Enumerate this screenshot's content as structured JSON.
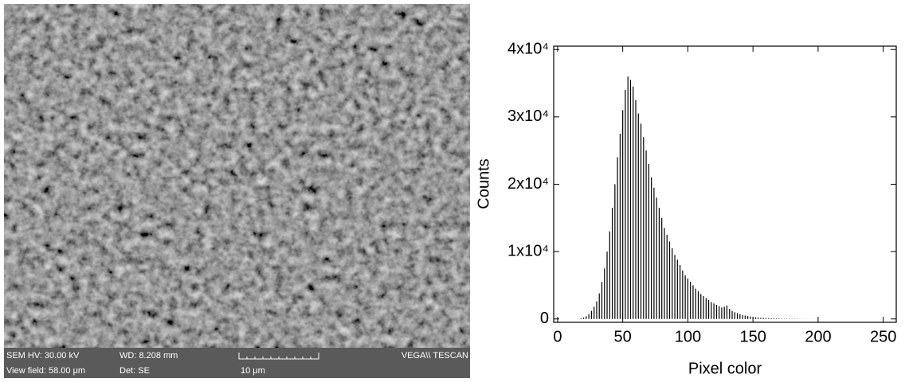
{
  "sem_image": {
    "info": {
      "hv": "SEM HV: 30.00 kV",
      "wd": "WD: 8.208 mm",
      "brand": "VEGA\\\\ TESCAN",
      "view_field": "View field: 58.00 μm",
      "detector": "Det: SE",
      "scale": "10 μm"
    }
  },
  "chart_data": {
    "type": "impulse",
    "x_label": "Pixel color",
    "y_label": "Counts",
    "color": "#000000",
    "x": [
      14,
      16,
      18,
      20,
      22,
      24,
      26,
      28,
      30,
      32,
      34,
      36,
      38,
      40,
      42,
      44,
      46,
      48,
      50,
      52,
      54,
      56,
      58,
      60,
      62,
      64,
      66,
      68,
      70,
      72,
      74,
      76,
      78,
      80,
      82,
      84,
      86,
      88,
      90,
      92,
      94,
      96,
      98,
      100,
      102,
      104,
      106,
      108,
      110,
      112,
      114,
      116,
      118,
      120,
      122,
      124,
      126,
      128,
      130,
      132,
      134,
      136,
      138,
      140,
      142,
      144,
      146,
      148,
      150,
      152,
      154,
      156,
      158,
      160,
      162,
      164,
      166,
      168,
      170,
      172,
      174,
      176,
      178,
      180,
      182,
      184,
      186,
      188,
      190,
      192,
      194,
      196,
      198,
      200
    ],
    "values": [
      0,
      0,
      100,
      200,
      400,
      700,
      1200,
      1800,
      2600,
      3800,
      5500,
      7500,
      10000,
      13000,
      16500,
      20000,
      24000,
      27500,
      31000,
      34000,
      36000,
      35500,
      34500,
      32500,
      30500,
      29000,
      27000,
      25000,
      23000,
      21000,
      19500,
      18000,
      16500,
      15000,
      13500,
      12500,
      11500,
      10500,
      9500,
      8800,
      8000,
      7200,
      6500,
      6000,
      5500,
      5000,
      4500,
      4100,
      3700,
      3400,
      3100,
      2800,
      2500,
      2300,
      2100,
      1900,
      1700,
      1800,
      2000,
      1500,
      1200,
      1000,
      850,
      700,
      600,
      500,
      420,
      350,
      300,
      250,
      210,
      180,
      150,
      130,
      110,
      100,
      90,
      80,
      70,
      60,
      50,
      45,
      40,
      35,
      30,
      25,
      20,
      18,
      15,
      12,
      10,
      8,
      5,
      3
    ],
    "xlim": [
      -3,
      260
    ],
    "ylim": [
      -500,
      40500
    ],
    "xticks": [
      0,
      50,
      100,
      150,
      200,
      250
    ],
    "yticks": [
      0,
      {
        "value": 10000,
        "label": "1x10⁴"
      },
      {
        "value": 20000,
        "label": "2x10⁴"
      },
      {
        "value": 30000,
        "label": "3x10⁴"
      },
      {
        "value": 40000,
        "label": "4x10⁴"
      }
    ]
  }
}
